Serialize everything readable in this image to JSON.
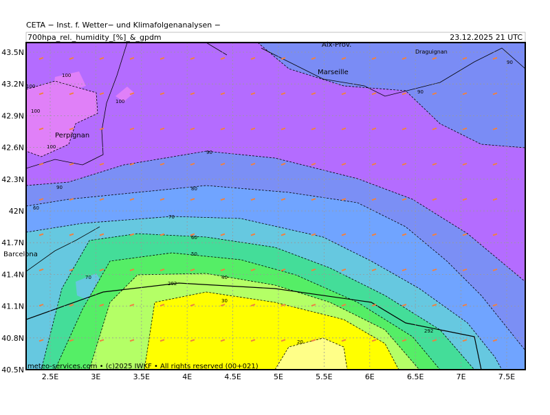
{
  "header": {
    "title": "CETA − Inst. f. Wetter− und Klimafolgenanalysen −",
    "subtitle": "700hpa_rel._humidity_[%]_&_gpdm",
    "datetime": "23.12.2025 21 UTC"
  },
  "axes": {
    "x_labels": [
      "2.5E",
      "3E",
      "3.5E",
      "4E",
      "4.5E",
      "5E",
      "5.5E",
      "6E",
      "6.5E",
      "7E",
      "7.5E"
    ],
    "y_labels": [
      "43.5N",
      "43.2N",
      "42.9N",
      "42.6N",
      "42.3N",
      "42N",
      "41.7N",
      "41.4N",
      "41.1N",
      "40.8N",
      "40.5N"
    ]
  },
  "places": [
    "Aix-Prov.",
    "Draguignan",
    "Marseille",
    "Perpignan",
    "Barcelona"
  ],
  "contour_labels": [
    100,
    100,
    100,
    100,
    100,
    90,
    90,
    90,
    90,
    80,
    60,
    70,
    60,
    50,
    70,
    40,
    30,
    292,
    292,
    20
  ],
  "footer": "meteo-services.com • (c)2025 IWKF • All rights reserved (00+021)"
}
